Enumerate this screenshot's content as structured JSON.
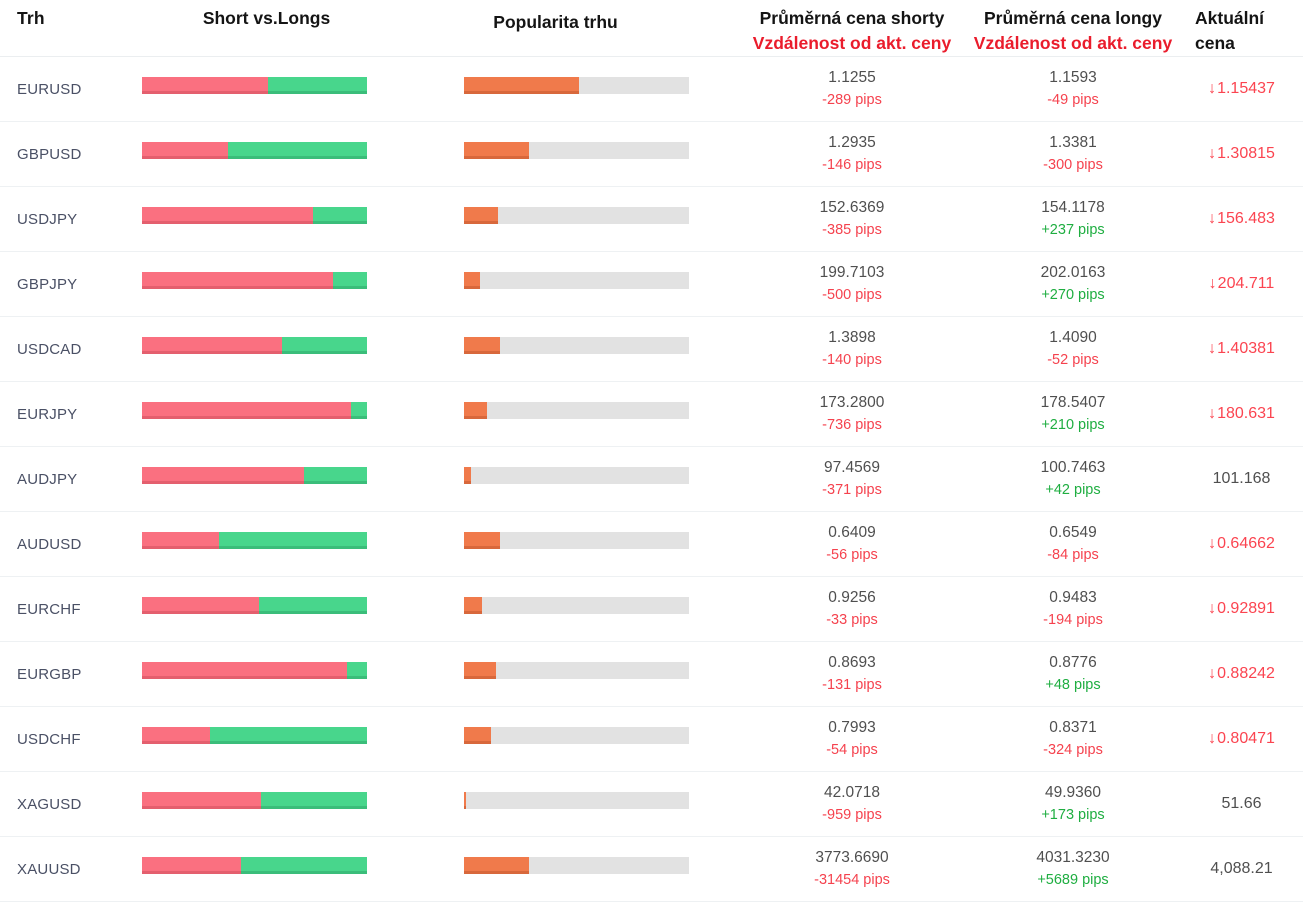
{
  "header": {
    "market": "Trh",
    "short_vs_longs": "Short vs.Longs",
    "popularity": "Popularita trhu",
    "avg_short": {
      "line1": "Průměrná cena shorty",
      "line2": "Vzdálenost od akt. ceny"
    },
    "avg_long": {
      "line1": "Průměrná cena longy",
      "line2": "Vzdálenost od akt. ceny"
    },
    "current": {
      "line1": "Aktuální",
      "line2": "cena"
    }
  },
  "icons": {
    "current_price_trend_down": "down-arrow-icon",
    "down_arrow_glyph": "↓"
  },
  "colors": {
    "short_bar": "#fa7080",
    "short_bar_edge": "#e45f6e",
    "long_bar": "#48d68c",
    "long_bar_edge": "#3bbd7a",
    "popularity_bar": "#f07a4b",
    "popularity_bar_edge": "#d8683c",
    "popularity_track": "#e2e2e2",
    "negative_pips": "#f5424e",
    "positive_pips": "#1fae41",
    "header_accent_red": "#ea1c2c",
    "current_price_red": "#fb4450"
  },
  "rows": [
    {
      "market": "EURUSD",
      "short_percent": 56,
      "long_percent": 44,
      "popularity_percent": 51,
      "avg_short_price": "1.1255",
      "avg_short_distance": "-289 pips",
      "avg_long_price": "1.1593",
      "avg_long_distance": "-49 pips",
      "current_price": "1.15437",
      "current_trend": "down"
    },
    {
      "market": "GBPUSD",
      "short_percent": 38,
      "long_percent": 62,
      "popularity_percent": 29,
      "avg_short_price": "1.2935",
      "avg_short_distance": "-146 pips",
      "avg_long_price": "1.3381",
      "avg_long_distance": "-300 pips",
      "current_price": "1.30815",
      "current_trend": "down"
    },
    {
      "market": "USDJPY",
      "short_percent": 76,
      "long_percent": 24,
      "popularity_percent": 15,
      "avg_short_price": "152.6369",
      "avg_short_distance": "-385 pips",
      "avg_long_price": "154.1178",
      "avg_long_distance": "+237 pips",
      "current_price": "156.483",
      "current_trend": "down"
    },
    {
      "market": "GBPJPY",
      "short_percent": 85,
      "long_percent": 15,
      "popularity_percent": 7,
      "avg_short_price": "199.7103",
      "avg_short_distance": "-500 pips",
      "avg_long_price": "202.0163",
      "avg_long_distance": "+270 pips",
      "current_price": "204.711",
      "current_trend": "down"
    },
    {
      "market": "USDCAD",
      "short_percent": 62,
      "long_percent": 38,
      "popularity_percent": 16,
      "avg_short_price": "1.3898",
      "avg_short_distance": "-140 pips",
      "avg_long_price": "1.4090",
      "avg_long_distance": "-52 pips",
      "current_price": "1.40381",
      "current_trend": "down"
    },
    {
      "market": "EURJPY",
      "short_percent": 93,
      "long_percent": 7,
      "popularity_percent": 10,
      "avg_short_price": "173.2800",
      "avg_short_distance": "-736 pips",
      "avg_long_price": "178.5407",
      "avg_long_distance": "+210 pips",
      "current_price": "180.631",
      "current_trend": "down"
    },
    {
      "market": "AUDJPY",
      "short_percent": 72,
      "long_percent": 28,
      "popularity_percent": 3,
      "avg_short_price": "97.4569",
      "avg_short_distance": "-371 pips",
      "avg_long_price": "100.7463",
      "avg_long_distance": "+42 pips",
      "current_price": "101.168",
      "current_trend": "none"
    },
    {
      "market": "AUDUSD",
      "short_percent": 34,
      "long_percent": 66,
      "popularity_percent": 16,
      "avg_short_price": "0.6409",
      "avg_short_distance": "-56 pips",
      "avg_long_price": "0.6549",
      "avg_long_distance": "-84 pips",
      "current_price": "0.64662",
      "current_trend": "down"
    },
    {
      "market": "EURCHF",
      "short_percent": 52,
      "long_percent": 48,
      "popularity_percent": 8,
      "avg_short_price": "0.9256",
      "avg_short_distance": "-33 pips",
      "avg_long_price": "0.9483",
      "avg_long_distance": "-194 pips",
      "current_price": "0.92891",
      "current_trend": "down"
    },
    {
      "market": "EURGBP",
      "short_percent": 91,
      "long_percent": 9,
      "popularity_percent": 14,
      "avg_short_price": "0.8693",
      "avg_short_distance": "-131 pips",
      "avg_long_price": "0.8776",
      "avg_long_distance": "+48 pips",
      "current_price": "0.88242",
      "current_trend": "down"
    },
    {
      "market": "USDCHF",
      "short_percent": 30,
      "long_percent": 70,
      "popularity_percent": 12,
      "avg_short_price": "0.7993",
      "avg_short_distance": "-54 pips",
      "avg_long_price": "0.8371",
      "avg_long_distance": "-324 pips",
      "current_price": "0.80471",
      "current_trend": "down"
    },
    {
      "market": "XAGUSD",
      "short_percent": 53,
      "long_percent": 47,
      "popularity_percent": 1,
      "avg_short_price": "42.0718",
      "avg_short_distance": "-959 pips",
      "avg_long_price": "49.9360",
      "avg_long_distance": "+173 pips",
      "current_price": "51.66",
      "current_trend": "none"
    },
    {
      "market": "XAUUSD",
      "short_percent": 44,
      "long_percent": 56,
      "popularity_percent": 29,
      "avg_short_price": "3773.6690",
      "avg_short_distance": "-31454 pips",
      "avg_long_price": "4031.3230",
      "avg_long_distance": "+5689 pips",
      "current_price": "4,088.21",
      "current_trend": "none"
    }
  ]
}
